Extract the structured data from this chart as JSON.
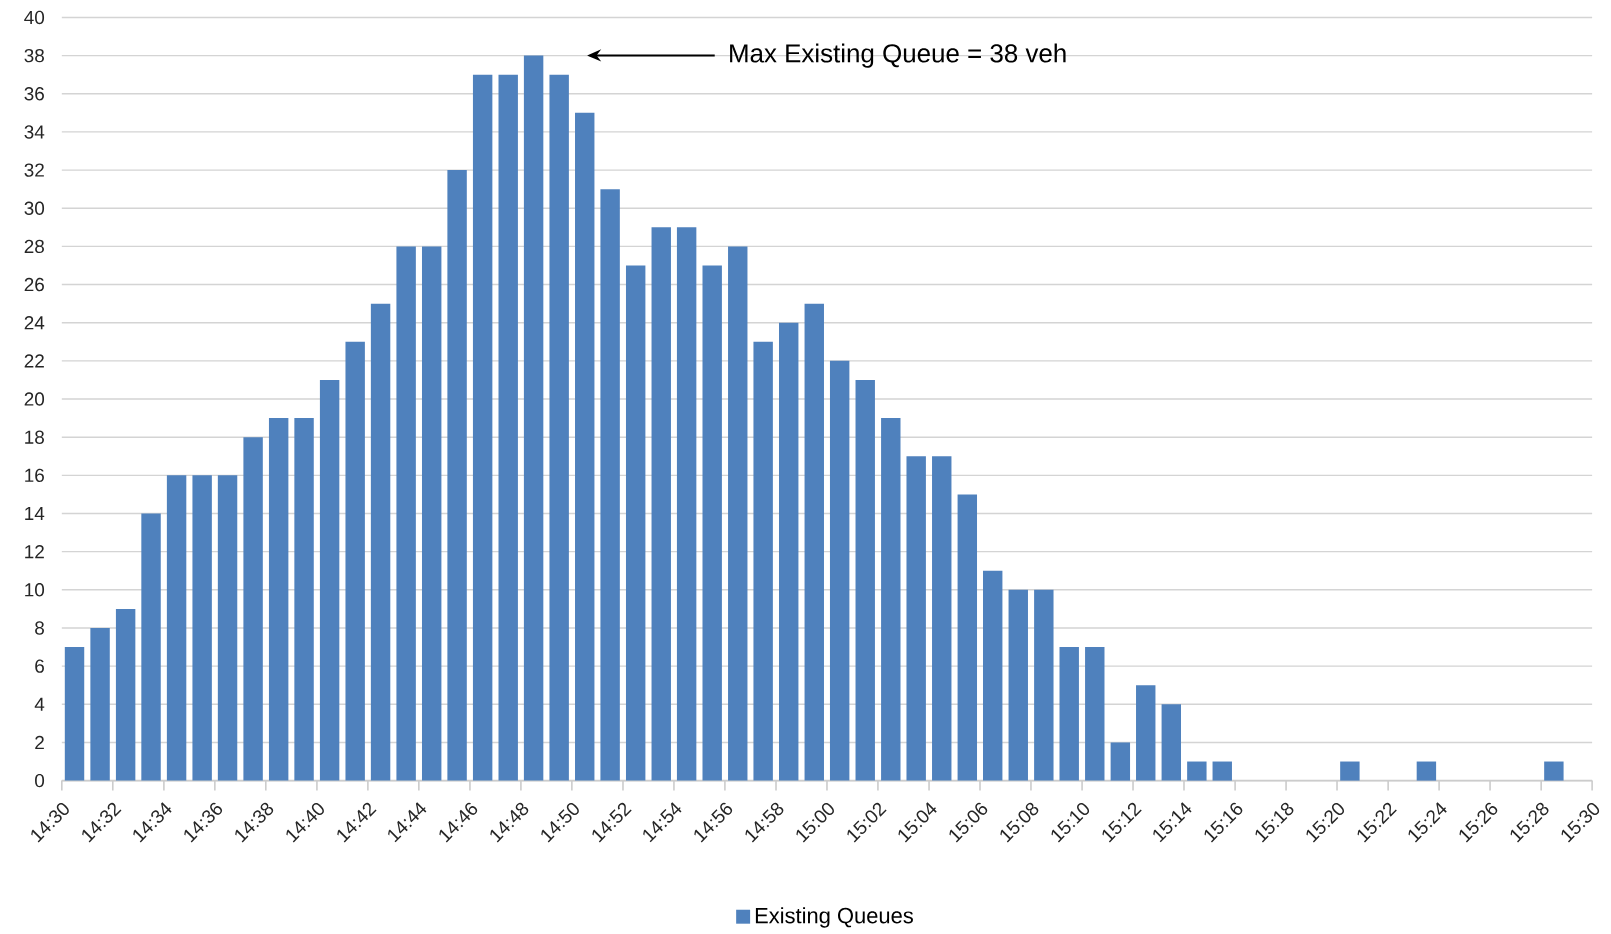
{
  "chart_data": {
    "type": "bar",
    "x": [
      14.5083,
      14.525,
      14.5417,
      14.5583,
      14.575,
      14.5917,
      14.6083,
      14.625,
      14.6417,
      14.6583,
      14.675,
      14.6917,
      14.7083,
      14.725,
      14.7417,
      14.7583,
      14.775,
      14.7917,
      14.8083,
      14.825,
      14.8417,
      14.8583,
      14.875,
      14.8917,
      14.9083,
      14.925,
      14.9417,
      14.9583,
      14.975,
      14.9917,
      15.0083,
      15.025,
      15.0417,
      15.0583,
      15.075,
      15.0917,
      15.1083,
      15.125,
      15.1417,
      15.1583,
      15.175,
      15.1917,
      15.2083,
      15.225,
      15.2417,
      15.2583,
      15.275,
      15.2917,
      15.3083,
      15.325,
      15.3417,
      15.3583,
      15.375,
      15.3917,
      15.4083,
      15.425,
      15.4417,
      15.4583,
      15.475,
      15.4917
    ],
    "series": [
      {
        "name": "Existing Queues",
        "color": "#4f81bd",
        "values": [
          7,
          8,
          9,
          14,
          16,
          16,
          16,
          18,
          19,
          19,
          21,
          23,
          25,
          28,
          28,
          32,
          37,
          37,
          38,
          37,
          35,
          31,
          27,
          29,
          29,
          27,
          28,
          23,
          24,
          25,
          22,
          21,
          19,
          17,
          17,
          15,
          11,
          10,
          10,
          7,
          7,
          2,
          5,
          4,
          1,
          1,
          0,
          0,
          0,
          0,
          1,
          0,
          0,
          1,
          0,
          0,
          0,
          0,
          1,
          0
        ]
      }
    ],
    "xlim": [
      14.5,
      15.5
    ],
    "xticks": [
      {
        "value": 14.5,
        "label": "14:30"
      },
      {
        "value": 14.5333,
        "label": "14:32"
      },
      {
        "value": 14.5667,
        "label": "14:34"
      },
      {
        "value": 14.6,
        "label": "14:36"
      },
      {
        "value": 14.6333,
        "label": "14:38"
      },
      {
        "value": 14.6667,
        "label": "14:40"
      },
      {
        "value": 14.7,
        "label": "14:42"
      },
      {
        "value": 14.7333,
        "label": "14:44"
      },
      {
        "value": 14.7667,
        "label": "14:46"
      },
      {
        "value": 14.8,
        "label": "14:48"
      },
      {
        "value": 14.8333,
        "label": "14:50"
      },
      {
        "value": 14.8667,
        "label": "14:52"
      },
      {
        "value": 14.9,
        "label": "14:54"
      },
      {
        "value": 14.9333,
        "label": "14:56"
      },
      {
        "value": 14.9667,
        "label": "14:58"
      },
      {
        "value": 15.0,
        "label": "15:00"
      },
      {
        "value": 15.0333,
        "label": "15:02"
      },
      {
        "value": 15.0667,
        "label": "15:04"
      },
      {
        "value": 15.1,
        "label": "15:06"
      },
      {
        "value": 15.1333,
        "label": "15:08"
      },
      {
        "value": 15.1667,
        "label": "15:10"
      },
      {
        "value": 15.2,
        "label": "15:12"
      },
      {
        "value": 15.2333,
        "label": "15:14"
      },
      {
        "value": 15.2667,
        "label": "15:16"
      },
      {
        "value": 15.3,
        "label": "15:18"
      },
      {
        "value": 15.3333,
        "label": "15:20"
      },
      {
        "value": 15.3667,
        "label": "15:22"
      },
      {
        "value": 15.4,
        "label": "15:24"
      },
      {
        "value": 15.4333,
        "label": "15:26"
      },
      {
        "value": 15.4667,
        "label": "15:28"
      },
      {
        "value": 15.5,
        "label": "15:30"
      }
    ],
    "ylim": [
      0,
      40
    ],
    "yticks": [
      0,
      2,
      4,
      6,
      8,
      10,
      12,
      14,
      16,
      18,
      20,
      22,
      24,
      26,
      28,
      30,
      32,
      34,
      36,
      38,
      40
    ],
    "grid": "y",
    "legend": "bottom",
    "annotations": [
      "Max Existing Queue = 38 veh"
    ]
  }
}
